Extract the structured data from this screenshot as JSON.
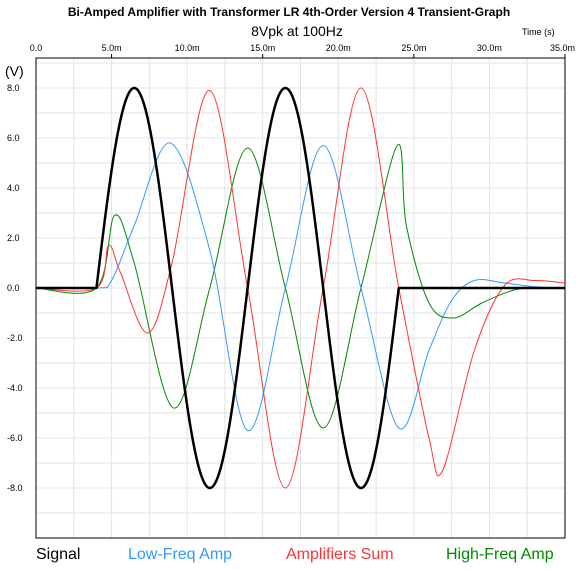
{
  "chart_data": {
    "type": "line",
    "title": "Bi-Amped Amplifier with Transformer LR 4th-Order Version 4 Transient-Graph",
    "subtitle": "8Vpk at 100Hz",
    "xlabel": "Time  (s)",
    "ylabel": "(V)",
    "xlim": [
      0,
      35
    ],
    "ylim": [
      -10,
      9.2
    ],
    "x_unit": "ms",
    "x_ticks_top": [
      "0.0",
      "10.0m",
      "20.0m",
      "30.0m"
    ],
    "x_ticks_bottom": [
      "5.0m",
      "15.0m",
      "25.0m",
      "35.0m"
    ],
    "y_ticks": [
      "8.0",
      "6.0",
      "4.0",
      "2.0",
      "0.0",
      "-2.0",
      "-4.0",
      "-6.0",
      "-8.0"
    ],
    "grid": true,
    "legend_position": "bottom",
    "series": [
      {
        "name": "Signal",
        "color": "#000000",
        "width": 2.5,
        "x": [
          0,
          4.0,
          6.5,
          11.5,
          16.5,
          21.5,
          24.0,
          35.0
        ],
        "y": [
          0,
          0,
          8,
          -8,
          8,
          -8,
          0,
          0
        ],
        "shape": "sine-burst"
      },
      {
        "name": "Low-Freq Amp",
        "color": "#3399ff",
        "width": 1,
        "x": [
          0,
          4.0,
          5.0,
          6.5,
          8.9,
          11.5,
          14.0,
          16.5,
          19.0,
          21.5,
          24.0,
          26.0,
          27.5,
          29.0,
          31.0,
          33.0,
          35.0
        ],
        "y": [
          0,
          0,
          0.3,
          2.5,
          5.8,
          1.5,
          -5.7,
          0,
          5.7,
          0,
          -5.6,
          -2.5,
          -0.5,
          0.3,
          0.2,
          0.05,
          0
        ],
        "shape": "smooth"
      },
      {
        "name": "Amplifiers Sum",
        "color": "#ff3333",
        "width": 1,
        "x": [
          0,
          4.0,
          4.8,
          5.6,
          7.4,
          9.0,
          11.5,
          14.0,
          16.5,
          19.0,
          21.5,
          24.0,
          26.0,
          26.9,
          29.0,
          31.0,
          33.0,
          35.0
        ],
        "y": [
          0,
          0,
          1.7,
          0.6,
          -1.8,
          1.0,
          7.9,
          0,
          -8.0,
          0,
          8.0,
          0,
          -6.0,
          -7.3,
          -2.5,
          0.1,
          0.3,
          0.2
        ],
        "shape": "smooth"
      },
      {
        "name": "High-Freq Amp",
        "color": "#008800",
        "width": 1,
        "x": [
          0,
          4.0,
          5.2,
          6.5,
          9.1,
          11.5,
          14.0,
          16.5,
          19.0,
          21.5,
          23.9,
          24.5,
          26.0,
          27.6,
          29.5,
          31.5,
          33.0,
          35.0
        ],
        "y": [
          0,
          0,
          2.9,
          1.0,
          -4.8,
          0,
          5.6,
          0,
          -5.6,
          0,
          5.7,
          2.5,
          -0.6,
          -1.2,
          -0.6,
          -0.1,
          0,
          0
        ],
        "shape": "smooth"
      }
    ]
  }
}
